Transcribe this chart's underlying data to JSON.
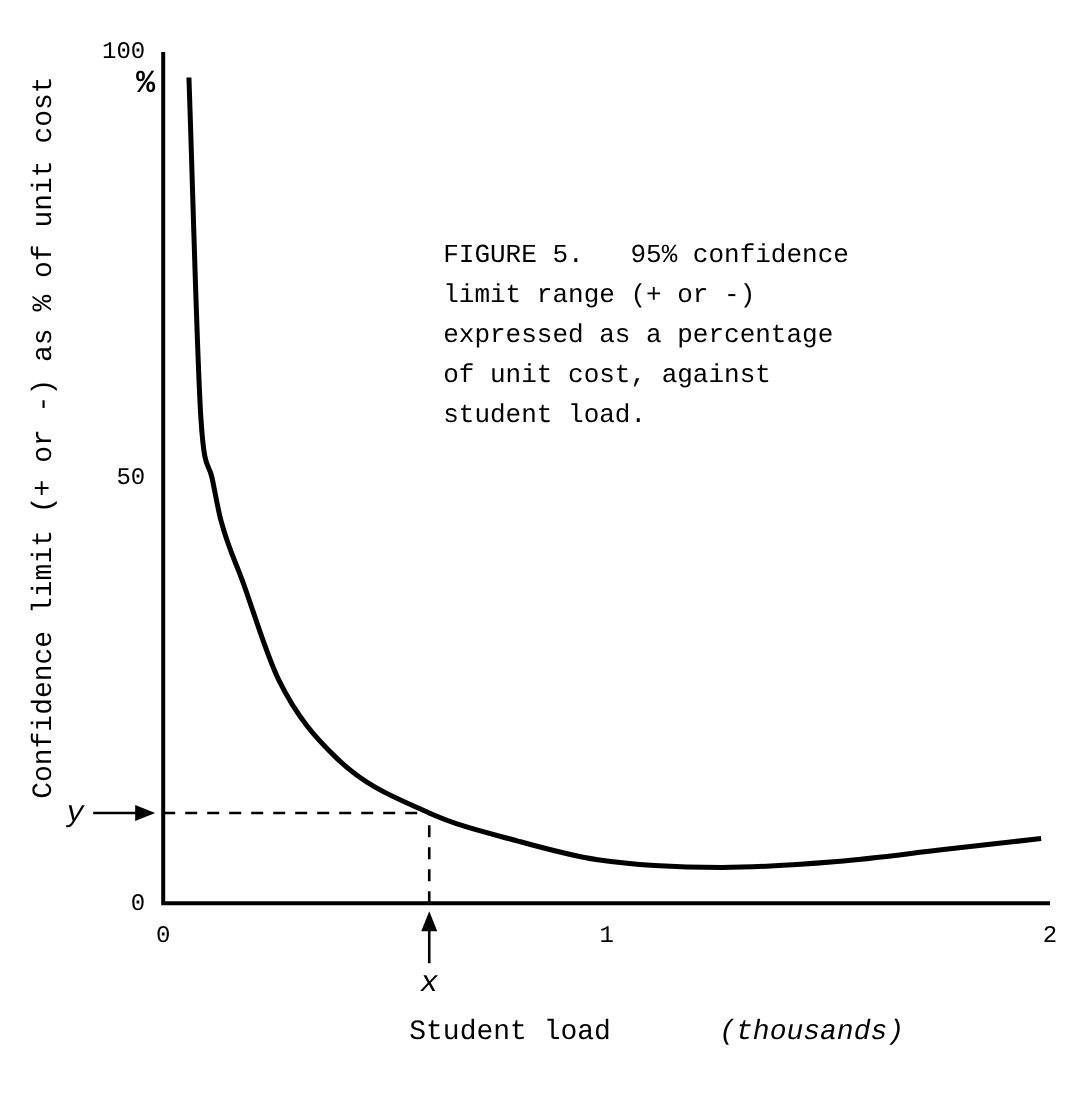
{
  "chart_data": {
    "type": "line",
    "xlabel": "Student load",
    "ylabel": "Confidence limit (+ or -) as % of unit cost",
    "annotations": [
      "FIGURE 5.   95% confidence\nlimit range (+ or -)\nexpressed as a percentage\nof unit cost, against\nstudent load.",
      "%",
      "(thousands)"
    ],
    "x": [
      0.058,
      0.085,
      0.11,
      0.13,
      0.18,
      0.26,
      0.39,
      0.6,
      0.8,
      0.98,
      1.26,
      1.52,
      1.76,
      1.98
    ],
    "series": [
      {
        "color": "#000000",
        "values": [
          97,
          57,
          50,
          45,
          37.7,
          26.3,
          17.1,
          10.6,
          7.3,
          5.1,
          4.2,
          4.9,
          6.3,
          7.6
        ]
      }
    ],
    "xlim": [
      0,
      2
    ],
    "xticks": [
      0,
      1,
      2
    ],
    "ylim": [
      0,
      100
    ],
    "yticks": [
      0,
      50,
      100
    ],
    "ref_lines": [
      {
        "axis": "x",
        "value": 0.6,
        "label": "x",
        "line_style": "dashed"
      },
      {
        "axis": "y",
        "value": 10.6,
        "label": "y",
        "line_style": "dashed"
      }
    ],
    "grid": false,
    "legend": false,
    "marker": "none",
    "line_style": "solid"
  }
}
